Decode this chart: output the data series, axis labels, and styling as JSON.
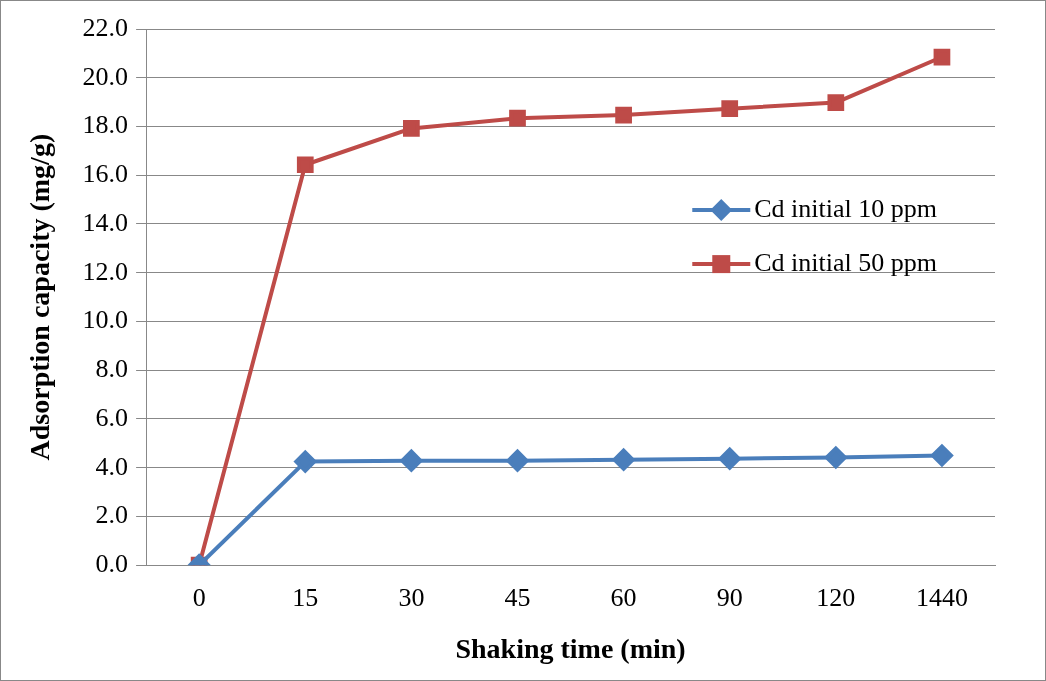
{
  "chart_data": {
    "type": "line",
    "xlabel": "Shaking time (min)",
    "ylabel": "Adsorption capacity (mg/g)",
    "categories": [
      "0",
      "15",
      "30",
      "45",
      "60",
      "90",
      "120",
      "1440"
    ],
    "series": [
      {
        "name": "Cd initial 10 ppm",
        "color": "#4a7ebb",
        "marker": "diamond",
        "values": [
          0,
          4.25,
          4.29,
          4.29,
          4.33,
          4.37,
          4.42,
          4.5
        ]
      },
      {
        "name": "Cd initial 50 ppm",
        "color": "#be4b48",
        "marker": "square",
        "values": [
          0,
          16.43,
          17.92,
          18.34,
          18.47,
          18.73,
          18.98,
          20.85
        ]
      }
    ],
    "ylim": [
      0,
      22
    ],
    "yticks": [
      {
        "value": 0,
        "label": "0.0"
      },
      {
        "value": 2,
        "label": "2.0"
      },
      {
        "value": 4,
        "label": "4.0"
      },
      {
        "value": 6,
        "label": "6.0"
      },
      {
        "value": 8,
        "label": "8.0"
      },
      {
        "value": 10,
        "label": "10.0"
      },
      {
        "value": 12,
        "label": "12.0"
      },
      {
        "value": 14,
        "label": "14.0"
      },
      {
        "value": 16,
        "label": "16.0"
      },
      {
        "value": 18,
        "label": "18.0"
      },
      {
        "value": 20,
        "label": "20.0"
      },
      {
        "value": 22,
        "label": "22.0"
      }
    ],
    "grid": "y",
    "legend": "right",
    "line_style": "solid"
  }
}
